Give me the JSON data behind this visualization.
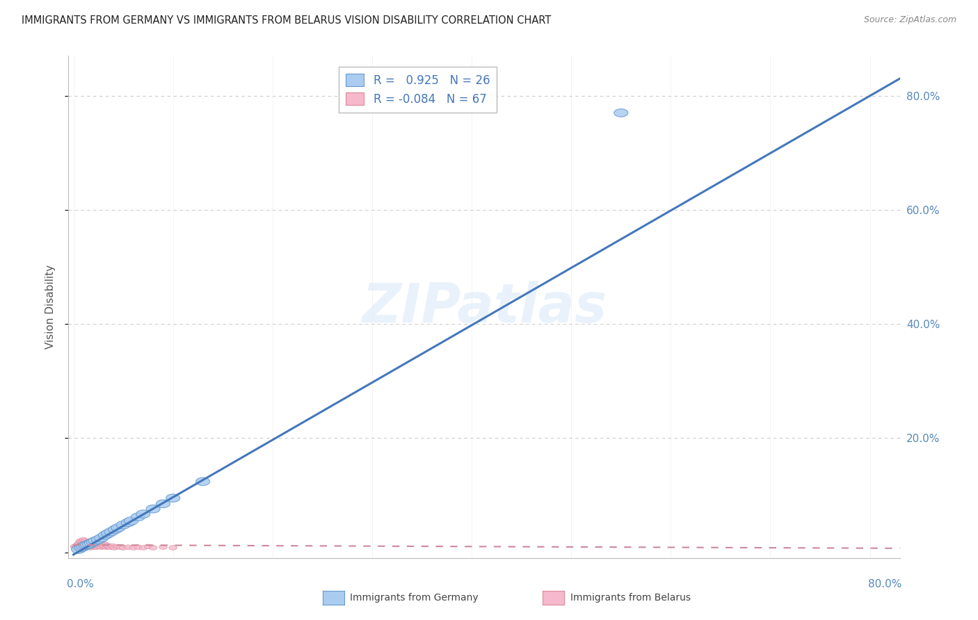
{
  "title": "IMMIGRANTS FROM GERMANY VS IMMIGRANTS FROM BELARUS VISION DISABILITY CORRELATION CHART",
  "source": "Source: ZipAtlas.com",
  "ylabel": "Vision Disability",
  "y_ticks": [
    0.0,
    0.2,
    0.4,
    0.6,
    0.8
  ],
  "y_tick_labels": [
    "",
    "20.0%",
    "40.0%",
    "60.0%",
    "80.0%"
  ],
  "x_ticks": [
    0.0,
    0.1,
    0.2,
    0.3,
    0.4,
    0.5,
    0.6,
    0.7,
    0.8
  ],
  "xlim": [
    -0.005,
    0.83
  ],
  "ylim": [
    -0.01,
    0.87
  ],
  "r_germany": 0.925,
  "n_germany": 26,
  "r_belarus": -0.084,
  "n_belarus": 67,
  "germany_color": "#aaccf0",
  "germany_edge_color": "#6699cc",
  "belarus_color": "#f5b8cc",
  "belarus_edge_color": "#dd8899",
  "germany_line_color": "#4477bb",
  "belarus_line_color": "#cc8899",
  "legend_label_germany": "Immigrants from Germany",
  "legend_label_belarus": "Immigrants from Belarus",
  "watermark": "ZIPatlas",
  "germany_points_x": [
    0.005,
    0.008,
    0.01,
    0.012,
    0.014,
    0.016,
    0.018,
    0.02,
    0.022,
    0.025,
    0.028,
    0.032,
    0.035,
    0.038,
    0.042,
    0.045,
    0.05,
    0.055,
    0.058,
    0.065,
    0.07,
    0.08,
    0.09,
    0.1,
    0.13,
    0.55
  ],
  "germany_points_y": [
    0.005,
    0.008,
    0.01,
    0.012,
    0.013,
    0.014,
    0.016,
    0.018,
    0.02,
    0.022,
    0.025,
    0.03,
    0.033,
    0.036,
    0.04,
    0.043,
    0.048,
    0.052,
    0.055,
    0.062,
    0.067,
    0.076,
    0.085,
    0.095,
    0.124,
    0.77
  ],
  "belarus_points_x": [
    0.001,
    0.002,
    0.003,
    0.004,
    0.005,
    0.006,
    0.006,
    0.007,
    0.007,
    0.008,
    0.008,
    0.009,
    0.009,
    0.01,
    0.01,
    0.01,
    0.011,
    0.011,
    0.012,
    0.012,
    0.013,
    0.013,
    0.014,
    0.014,
    0.015,
    0.015,
    0.016,
    0.016,
    0.017,
    0.017,
    0.018,
    0.018,
    0.019,
    0.019,
    0.02,
    0.02,
    0.021,
    0.021,
    0.022,
    0.022,
    0.023,
    0.024,
    0.025,
    0.026,
    0.027,
    0.028,
    0.029,
    0.03,
    0.031,
    0.032,
    0.033,
    0.034,
    0.035,
    0.037,
    0.039,
    0.041,
    0.044,
    0.047,
    0.05,
    0.055,
    0.06,
    0.065,
    0.07,
    0.075,
    0.08,
    0.09,
    0.1
  ],
  "belarus_points_y": [
    0.01,
    0.008,
    0.012,
    0.009,
    0.015,
    0.01,
    0.018,
    0.012,
    0.02,
    0.008,
    0.016,
    0.011,
    0.019,
    0.009,
    0.014,
    0.022,
    0.01,
    0.017,
    0.012,
    0.02,
    0.008,
    0.016,
    0.011,
    0.018,
    0.009,
    0.015,
    0.012,
    0.019,
    0.008,
    0.016,
    0.011,
    0.018,
    0.01,
    0.015,
    0.009,
    0.017,
    0.012,
    0.02,
    0.01,
    0.015,
    0.009,
    0.013,
    0.012,
    0.01,
    0.015,
    0.009,
    0.013,
    0.011,
    0.01,
    0.014,
    0.009,
    0.012,
    0.01,
    0.009,
    0.011,
    0.008,
    0.01,
    0.009,
    0.008,
    0.009,
    0.008,
    0.009,
    0.008,
    0.01,
    0.008,
    0.009,
    0.008
  ],
  "germany_line_x0": 0.0,
  "germany_line_y0": -0.004,
  "germany_line_x1": 0.83,
  "germany_line_y1": 0.83,
  "belarus_line_x0": 0.0,
  "belarus_line_y0": 0.013,
  "belarus_line_x1": 0.83,
  "belarus_line_y1": 0.007
}
